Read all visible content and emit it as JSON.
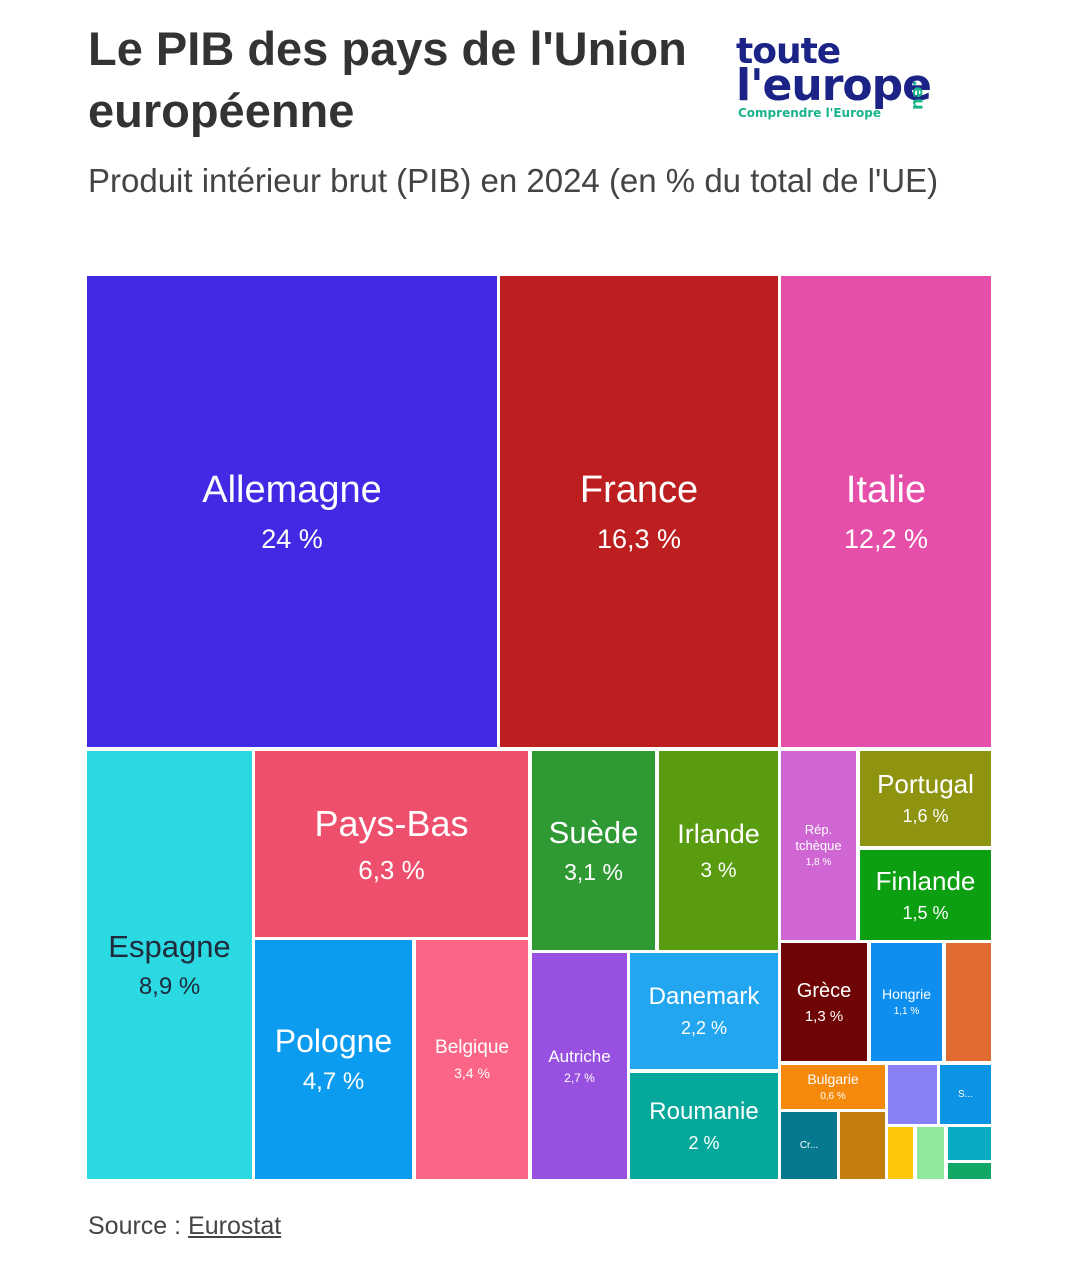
{
  "chart_data": {
    "type": "treemap",
    "title": "Le PIB des pays de l'Union européenne",
    "subtitle": "Produit intérieur brut (PIB) en 2024 (en % du total de l'UE)",
    "tiles": [
      {
        "name": "Allemagne",
        "label": "24 %",
        "value": 24,
        "color": "#4229e4"
      },
      {
        "name": "France",
        "label": "16,3 %",
        "value": 16.3,
        "color": "#bd1e1f"
      },
      {
        "name": "Italie",
        "label": "12,2 %",
        "value": 12.2,
        "color": "#e64fa9"
      },
      {
        "name": "Espagne",
        "label": "8,9 %",
        "value": 8.9,
        "color": "#2bd9e3"
      },
      {
        "name": "Pays-Bas",
        "label": "6,3 %",
        "value": 6.3,
        "color": "#ee4f6c"
      },
      {
        "name": "Pologne",
        "label": "4,7 %",
        "value": 4.7,
        "color": "#0b9cf0"
      },
      {
        "name": "Belgique",
        "label": "3,4 %",
        "value": 3.4,
        "color": "#fb6586"
      },
      {
        "name": "Suède",
        "label": "3,1 %",
        "value": 3.1,
        "color": "#2f9a34"
      },
      {
        "name": "Irlande",
        "label": "3 %",
        "value": 3,
        "color": "#5a9c10"
      },
      {
        "name": "Autriche",
        "label": "2,7 %",
        "value": 2.7,
        "color": "#9750e0"
      },
      {
        "name": "Danemark",
        "label": "2,2 %",
        "value": 2.2,
        "color": "#22a6f0"
      },
      {
        "name": "Roumanie",
        "label": "2 %",
        "value": 2,
        "color": "#06a89b"
      },
      {
        "name": "Rép. tchèque",
        "label": "1,8 %",
        "value": 1.8,
        "color": "#cf66d3"
      },
      {
        "name": "Portugal",
        "label": "1,6 %",
        "value": 1.6,
        "color": "#8e9410"
      },
      {
        "name": "Finlande",
        "label": "1,5 %",
        "value": 1.5,
        "color": "#0c9f11"
      },
      {
        "name": "Grèce",
        "label": "1,3 %",
        "value": 1.3,
        "color": "#6f0404"
      },
      {
        "name": "Hongrie",
        "label": "1,1 %",
        "value": 1.1,
        "color": "#0e8ff0"
      },
      {
        "name": "Bulgarie",
        "label": "0,6 %",
        "value": 0.6,
        "color": "#f5890c"
      },
      {
        "name": "S...",
        "label": "",
        "color": "#0b93e6"
      },
      {
        "name": "Cr...",
        "label": "",
        "color": "#06798e"
      },
      {
        "name": "",
        "label": "",
        "color": "#df6b31"
      },
      {
        "name": "",
        "label": "",
        "color": "#8880f6"
      },
      {
        "name": "",
        "label": "",
        "color": "#c27d0c"
      },
      {
        "name": "",
        "label": "",
        "color": "#fdc80a"
      },
      {
        "name": "",
        "label": "",
        "color": "#90e89a"
      },
      {
        "name": "",
        "label": "",
        "color": "#09aac4"
      },
      {
        "name": "",
        "label": "",
        "color": "#11a865"
      }
    ]
  },
  "logo": {
    "line1": "toute",
    "line2": "l'europe",
    "suffix": ".eu",
    "tagline": "Comprendre l'Europe"
  },
  "source": {
    "prefix": "Source : ",
    "link": "Eurostat"
  }
}
